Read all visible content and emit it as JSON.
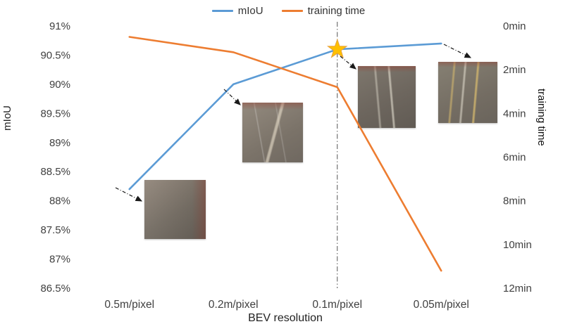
{
  "chart_data": {
    "type": "line",
    "categories": [
      "0.5m/pixel",
      "0.2m/pixel",
      "0.1m/pixel",
      "0.05m/pixel"
    ],
    "series": [
      {
        "name": "mIoU",
        "axis": "left",
        "color": "#5B9BD5",
        "values": [
          88.2,
          90.0,
          90.6,
          90.7
        ]
      },
      {
        "name": "training time",
        "axis": "right",
        "color": "#ED7D31",
        "values": [
          0.5,
          1.2,
          2.8,
          11.2
        ]
      }
    ],
    "title": "",
    "xlabel": "BEV resolution",
    "left_axis": {
      "label": "mIoU",
      "min": 86.5,
      "max": 91,
      "tick_values": [
        91,
        90.5,
        90,
        89.5,
        89,
        88.5,
        88,
        87.5,
        87,
        86.5
      ],
      "ticks": [
        "91%",
        "90.5%",
        "90%",
        "89.5%",
        "89%",
        "88.5%",
        "88%",
        "87.5%",
        "87%",
        "86.5%"
      ]
    },
    "right_axis": {
      "label": "training time",
      "min": 0,
      "max": 12,
      "inverted": true,
      "tick_values": [
        0,
        2,
        4,
        6,
        8,
        10,
        12
      ],
      "ticks": [
        "0min",
        "2min",
        "4min",
        "6min",
        "8min",
        "10min",
        "12min"
      ]
    },
    "legend": [
      "mIoU",
      "training time"
    ],
    "legend_position": "top-center",
    "grid": false,
    "annotations": {
      "star_at_category": "0.1m/pixel",
      "star_series": "mIoU",
      "vline_at_category": "0.1m/pixel",
      "sample_image_callouts": [
        "0.5m/pixel",
        "0.2m/pixel",
        "0.1m/pixel",
        "0.05m/pixel"
      ]
    }
  },
  "colors": {
    "miou_line": "#5B9BD5",
    "training_line": "#ED7D31",
    "star_fill": "#FFC000",
    "star_stroke": "#E8A33D",
    "axis_text": "#404040",
    "arrow": "#1a1a1a"
  }
}
